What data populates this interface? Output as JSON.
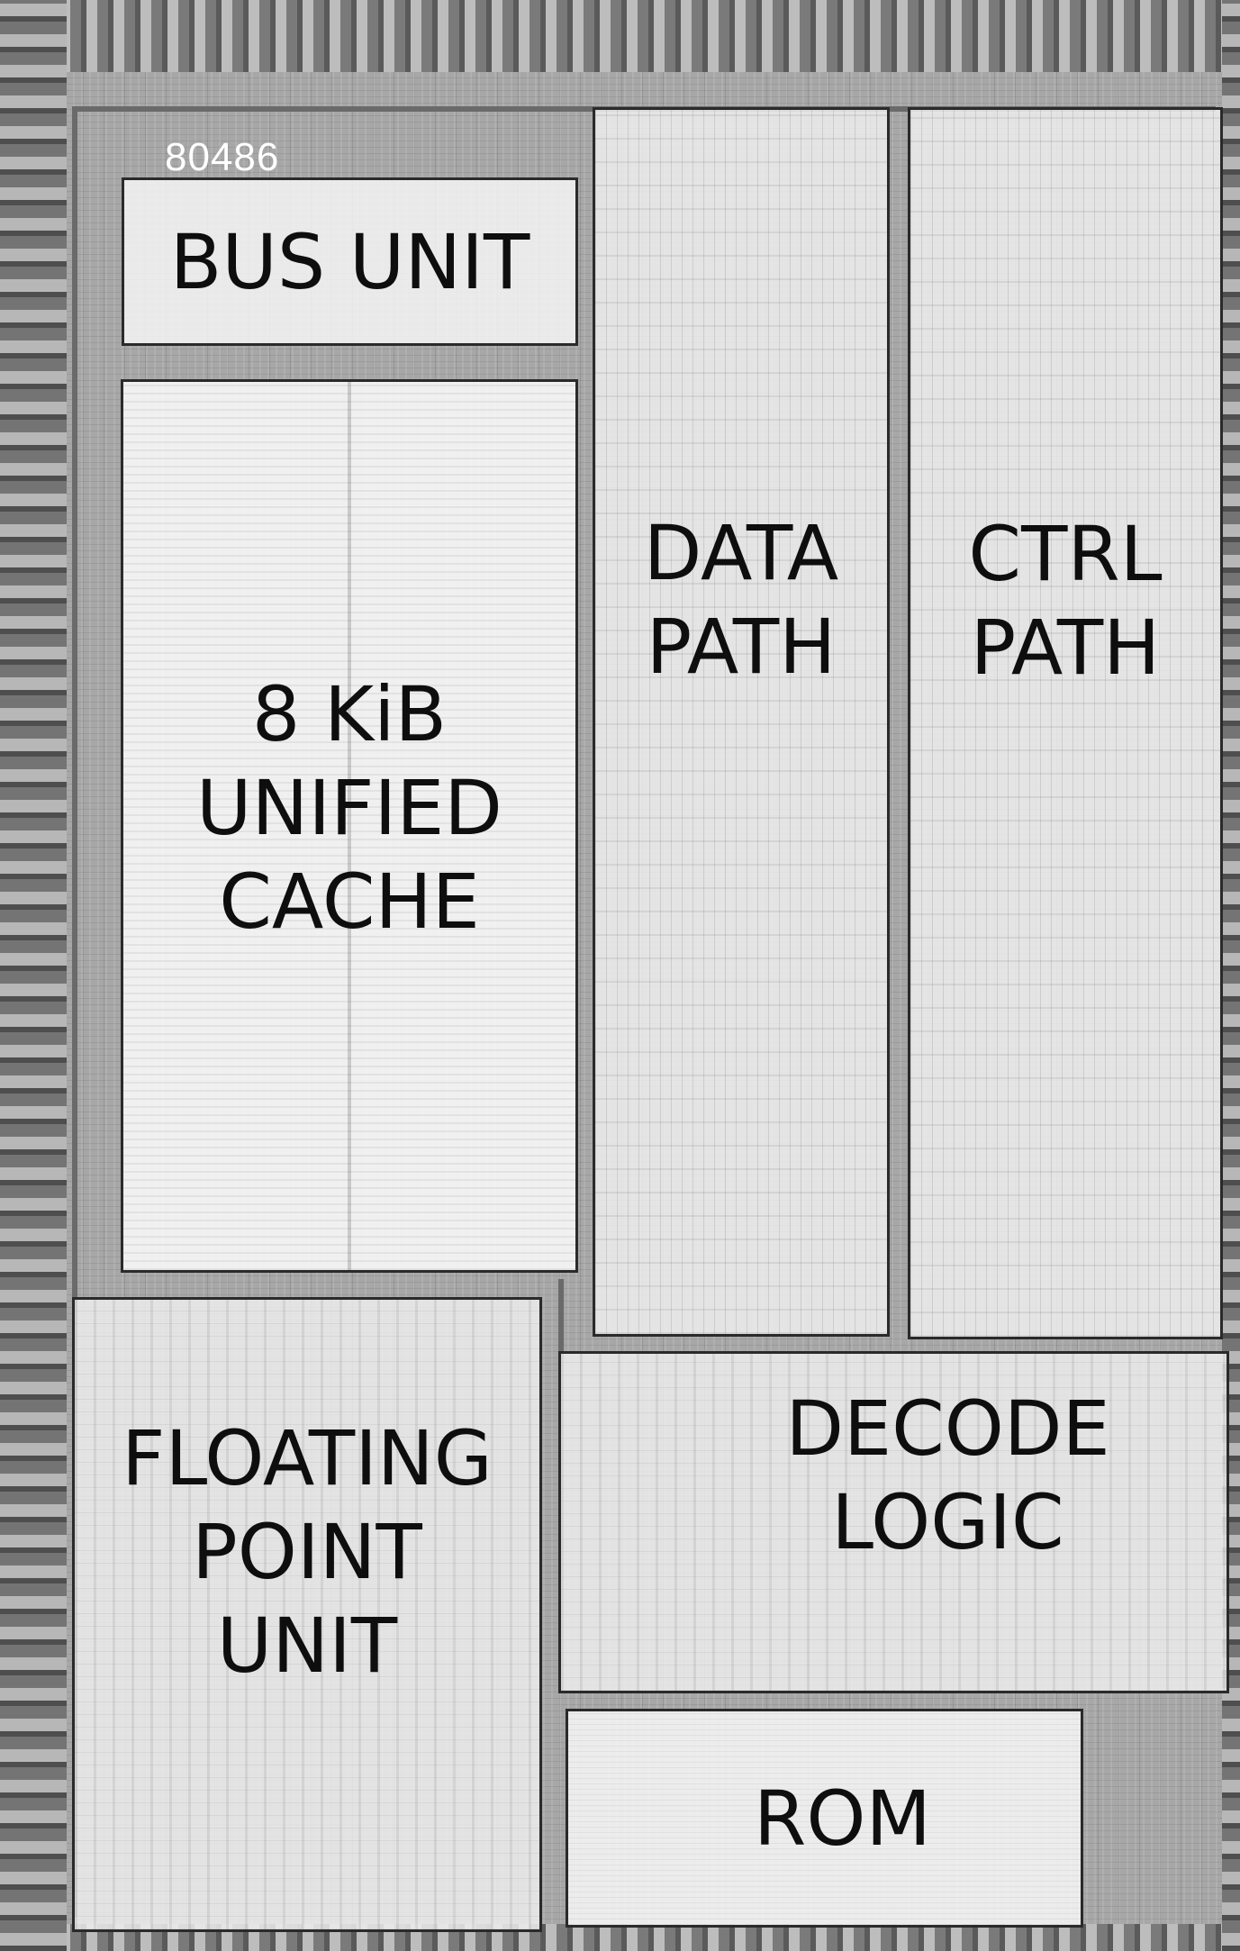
{
  "die_id": "80486",
  "blocks": {
    "bus_unit": [
      "BUS UNIT"
    ],
    "cache": [
      "8 KiB",
      "UNIFIED",
      "CACHE"
    ],
    "data_path": [
      "DATA",
      "PATH"
    ],
    "ctrl_path": [
      "CTRL",
      "PATH"
    ],
    "fpu": [
      "FLOATING",
      "POINT",
      "UNIT"
    ],
    "decode": [
      "DECODE",
      "LOGIC"
    ],
    "rom": [
      "ROM"
    ]
  },
  "colors": {
    "block_border": "#2a2a2a",
    "label_text": "#0e0e0e",
    "die_id_text": "#ffffff"
  }
}
